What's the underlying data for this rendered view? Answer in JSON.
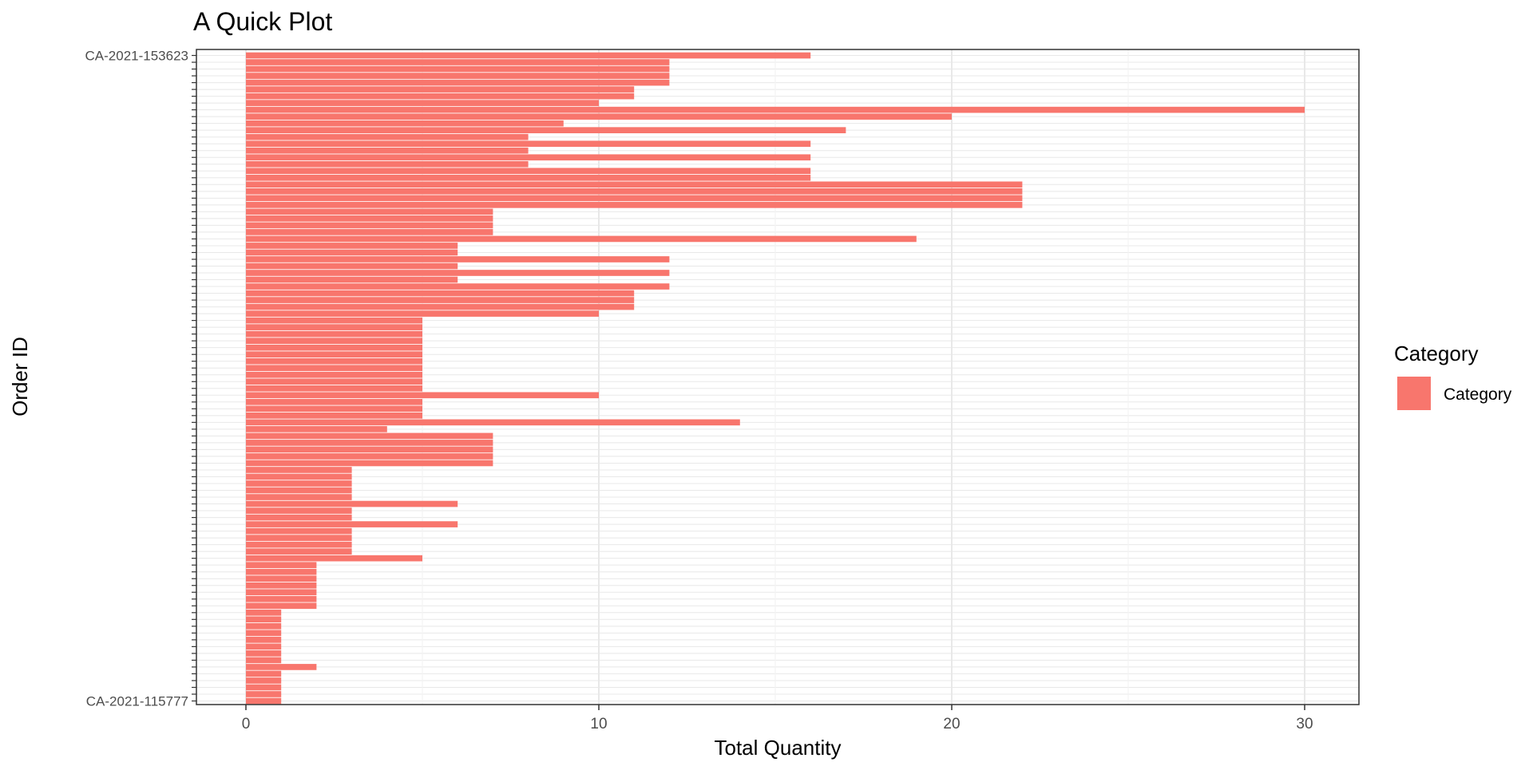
{
  "chart_data": {
    "type": "bar",
    "orientation": "horizontal",
    "title": "A Quick Plot",
    "xlabel": "Total Quantity",
    "ylabel": "Order ID",
    "xlim": [
      0,
      30
    ],
    "x_ticks": [
      0,
      10,
      20,
      30
    ],
    "grid": true,
    "legend": {
      "title": "Category",
      "position": "right",
      "entries": [
        {
          "label": "Category",
          "color": "#F8766D"
        }
      ]
    },
    "visible_tick_labels": [
      "CA-2021-153623",
      "CA-2021-115777"
    ],
    "values": [
      16,
      12,
      12,
      12,
      12,
      11,
      11,
      10,
      30,
      20,
      9,
      17,
      8,
      16,
      8,
      16,
      8,
      16,
      16,
      22,
      22,
      22,
      22,
      7,
      7,
      7,
      7,
      19,
      6,
      6,
      12,
      6,
      12,
      6,
      12,
      11,
      11,
      11,
      10,
      5,
      5,
      5,
      5,
      5,
      5,
      5,
      5,
      5,
      5,
      5,
      10,
      5,
      5,
      5,
      14,
      4,
      7,
      7,
      7,
      7,
      7,
      3,
      3,
      3,
      3,
      3,
      6,
      3,
      3,
      6,
      3,
      3,
      3,
      3,
      5,
      2,
      2,
      2,
      2,
      2,
      2,
      2,
      1,
      1,
      1,
      1,
      1,
      1,
      1,
      1,
      2,
      1,
      1,
      1,
      1,
      1
    ]
  },
  "colors": {
    "bar": "#F8766D",
    "panel_border": "#333333",
    "grid_major": "#E8E8E8",
    "grid_minor": "#F3F3F3"
  }
}
